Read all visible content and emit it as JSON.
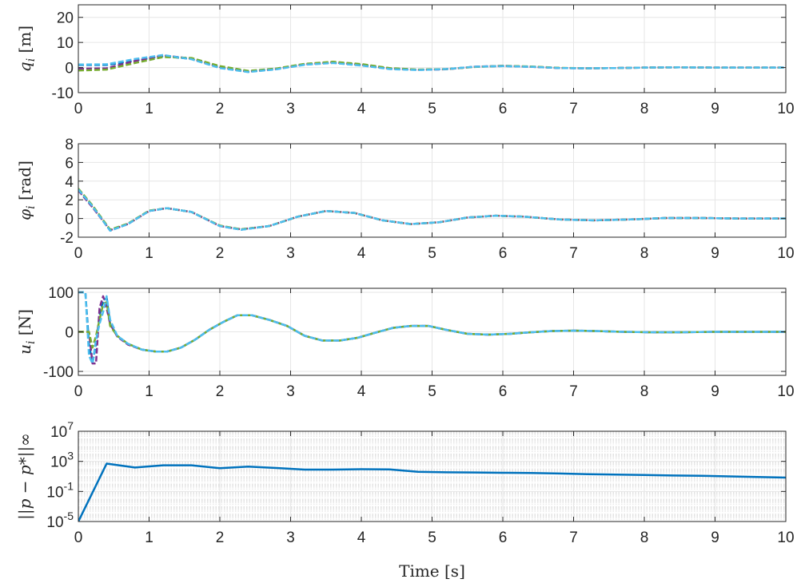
{
  "chart_data": [
    {
      "type": "line",
      "ylabel": "q_i [m]",
      "xlim": [
        0,
        10
      ],
      "ylim": [
        -10,
        25
      ],
      "yticks": [
        -10,
        0,
        10,
        20
      ],
      "xticks": [
        0,
        1,
        2,
        3,
        4,
        5,
        6,
        7,
        8,
        9,
        10
      ],
      "grid": true,
      "series": [
        {
          "color": "#0072BD",
          "style": "dashed",
          "x": [
            0,
            0.4,
            0.8,
            1.2,
            1.6,
            2.0,
            2.4,
            2.8,
            3.2,
            3.6,
            4.0,
            4.4,
            4.8,
            5.2,
            5.6,
            6.0,
            6.4,
            6.8,
            7.2,
            7.6,
            8.0,
            8.5,
            9,
            9.5,
            10
          ],
          "y": [
            1.0,
            1.0,
            2.8,
            4.6,
            3.4,
            0.0,
            -1.7,
            -0.5,
            1.2,
            1.9,
            1.0,
            -0.5,
            -0.9,
            -0.6,
            0.3,
            0.6,
            0.3,
            -0.2,
            -0.3,
            -0.2,
            0.0,
            0.1,
            0.0,
            0.0,
            0.0
          ]
        },
        {
          "color": "#7E2F8E",
          "style": "dashed",
          "x": [
            0,
            0.4,
            0.8,
            1.2,
            1.6,
            2.0,
            2.4,
            2.8,
            3.2,
            3.6,
            4.0,
            4.4,
            4.8,
            5.2,
            5.6,
            6.0,
            6.4,
            6.8,
            7.2,
            7.6,
            8.0,
            8.5,
            9,
            9.5,
            10
          ],
          "y": [
            -0.5,
            -0.3,
            2.6,
            4.8,
            3.6,
            0.2,
            -1.6,
            -0.6,
            1.3,
            2.1,
            1.1,
            -0.4,
            -0.9,
            -0.7,
            0.3,
            0.7,
            0.3,
            -0.2,
            -0.3,
            -0.2,
            0.0,
            0.1,
            0.0,
            0.0,
            0.0
          ]
        },
        {
          "color": "#77AC30",
          "style": "dashed",
          "x": [
            0,
            0.4,
            0.8,
            1.2,
            1.6,
            2.0,
            2.4,
            2.8,
            3.2,
            3.6,
            4.0,
            4.4,
            4.8,
            5.2,
            5.6,
            6.0,
            6.4,
            6.8,
            7.2,
            7.6,
            8.0,
            8.5,
            9,
            9.5,
            10
          ],
          "y": [
            -1.2,
            -0.8,
            1.8,
            4.2,
            3.8,
            0.6,
            -1.3,
            -0.4,
            1.5,
            2.3,
            1.4,
            -0.2,
            -0.8,
            -0.6,
            0.2,
            0.7,
            0.4,
            -0.1,
            -0.3,
            -0.2,
            0.0,
            0.1,
            0.0,
            0.0,
            0.0
          ]
        },
        {
          "color": "#4DBEEE",
          "style": "dashed",
          "x": [
            0,
            0.4,
            0.8,
            1.2,
            1.6,
            2.0,
            2.4,
            2.8,
            3.2,
            3.6,
            4.0,
            4.4,
            4.8,
            5.2,
            5.6,
            6.0,
            6.4,
            6.8,
            7.2,
            7.6,
            8.0,
            8.5,
            9,
            9.5,
            10
          ],
          "y": [
            1.2,
            1.3,
            3.4,
            5.0,
            3.3,
            -0.2,
            -1.8,
            -0.7,
            1.1,
            1.8,
            0.8,
            -0.6,
            -1.0,
            -0.6,
            0.3,
            0.6,
            0.3,
            -0.2,
            -0.3,
            -0.2,
            0.0,
            0.1,
            0.0,
            0.0,
            0.0
          ]
        }
      ]
    },
    {
      "type": "line",
      "ylabel": "φ_i [rad]",
      "xlim": [
        0,
        10
      ],
      "ylim": [
        -2,
        8
      ],
      "yticks": [
        -2,
        0,
        2,
        4,
        6,
        8
      ],
      "xticks": [
        0,
        1,
        2,
        3,
        4,
        5,
        6,
        7,
        8,
        9,
        10
      ],
      "grid": true,
      "series": [
        {
          "color": "#0072BD",
          "style": "dashed",
          "x": [
            0,
            0.2,
            0.45,
            0.7,
            1.0,
            1.25,
            1.6,
            2.0,
            2.3,
            2.7,
            3.1,
            3.5,
            3.9,
            4.3,
            4.7,
            5.1,
            5.5,
            5.9,
            6.3,
            6.8,
            7.3,
            7.8,
            8.3,
            8.8,
            9.3,
            10
          ],
          "y": [
            3.1,
            1.3,
            -1.3,
            -0.6,
            0.8,
            1.1,
            0.7,
            -0.8,
            -1.2,
            -0.8,
            0.2,
            0.8,
            0.6,
            -0.2,
            -0.6,
            -0.4,
            0.1,
            0.3,
            0.2,
            -0.1,
            -0.2,
            -0.1,
            0.05,
            0.05,
            0.0,
            0.0
          ]
        },
        {
          "color": "#7E2F8E",
          "style": "dashed",
          "x": [
            0,
            0.2,
            0.45,
            0.7,
            1.0,
            1.25,
            1.6,
            2.0,
            2.3,
            2.7,
            3.1,
            3.5,
            3.9,
            4.3,
            4.7,
            5.1,
            5.5,
            5.9,
            6.3,
            6.8,
            7.3,
            7.8,
            8.3,
            8.8,
            9.3,
            10
          ],
          "y": [
            3.0,
            1.2,
            -1.25,
            -0.6,
            0.8,
            1.1,
            0.7,
            -0.8,
            -1.15,
            -0.8,
            0.2,
            0.8,
            0.6,
            -0.2,
            -0.6,
            -0.4,
            0.1,
            0.3,
            0.2,
            -0.1,
            -0.2,
            -0.1,
            0.05,
            0.05,
            0.0,
            0.0
          ]
        },
        {
          "color": "#77AC30",
          "style": "dashed",
          "x": [
            0,
            0.2,
            0.45,
            0.7,
            1.0,
            1.25,
            1.6,
            2.0,
            2.3,
            2.7,
            3.1,
            3.5,
            3.9,
            4.3,
            4.7,
            5.1,
            5.5,
            5.9,
            6.3,
            6.8,
            7.3,
            7.8,
            8.3,
            8.8,
            9.3,
            10
          ],
          "y": [
            3.2,
            1.4,
            -1.2,
            -0.55,
            0.85,
            1.1,
            0.7,
            -0.75,
            -1.15,
            -0.8,
            0.2,
            0.8,
            0.6,
            -0.2,
            -0.6,
            -0.4,
            0.1,
            0.3,
            0.2,
            -0.1,
            -0.2,
            -0.1,
            0.05,
            0.05,
            0.0,
            0.0
          ]
        },
        {
          "color": "#4DBEEE",
          "style": "dashed",
          "x": [
            0,
            0.2,
            0.45,
            0.7,
            1.0,
            1.25,
            1.6,
            2.0,
            2.3,
            2.7,
            3.1,
            3.5,
            3.9,
            4.3,
            4.7,
            5.1,
            5.5,
            5.9,
            6.3,
            6.8,
            7.3,
            7.8,
            8.3,
            8.8,
            9.3,
            10
          ],
          "y": [
            3.1,
            1.3,
            -1.3,
            -0.6,
            0.8,
            1.1,
            0.7,
            -0.8,
            -1.2,
            -0.8,
            0.2,
            0.8,
            0.6,
            -0.2,
            -0.6,
            -0.4,
            0.1,
            0.3,
            0.2,
            -0.1,
            -0.2,
            -0.1,
            0.05,
            0.05,
            0.0,
            0.0
          ]
        }
      ]
    },
    {
      "type": "line",
      "ylabel": "u_i [N]",
      "xlim": [
        0,
        10
      ],
      "ylim": [
        -110,
        110
      ],
      "yticks": [
        -100,
        0,
        100
      ],
      "xticks": [
        0,
        1,
        2,
        3,
        4,
        5,
        6,
        7,
        8,
        9,
        10
      ],
      "grid": true,
      "series": [
        {
          "color": "#0072BD",
          "style": "dashed",
          "x": [
            0,
            0.1,
            0.15,
            0.2,
            0.25,
            0.3,
            0.35,
            0.4,
            0.45,
            0.55,
            0.7,
            0.9,
            1.1,
            1.25,
            1.45,
            1.65,
            1.85,
            2.05,
            2.25,
            2.45,
            2.7,
            2.95,
            3.2,
            3.45,
            3.7,
            3.95,
            4.2,
            4.45,
            4.7,
            4.95,
            5.2,
            5.5,
            5.8,
            6.1,
            6.4,
            6.7,
            7.0,
            7.3,
            7.7,
            8.1,
            8.5,
            9,
            9.5,
            10
          ],
          "y": [
            100,
            100,
            -30,
            -80,
            -30,
            40,
            80,
            85,
            20,
            -10,
            -30,
            -45,
            -50,
            -50,
            -40,
            -20,
            5,
            25,
            42,
            42,
            30,
            15,
            -10,
            -22,
            -22,
            -15,
            -2,
            10,
            15,
            15,
            5,
            -5,
            -7,
            -5,
            -1,
            2,
            3,
            2,
            0,
            -1,
            -1,
            0,
            0,
            0
          ]
        },
        {
          "color": "#7E2F8E",
          "style": "dashed",
          "x": [
            0,
            0.1,
            0.15,
            0.2,
            0.25,
            0.3,
            0.35,
            0.4,
            0.45,
            0.55,
            0.7,
            0.9,
            1.1,
            1.25,
            1.45,
            1.65,
            1.85,
            2.05,
            2.25,
            2.45,
            2.7,
            2.95,
            3.2,
            3.45,
            3.7,
            3.95,
            4.2,
            4.45,
            4.7,
            4.95,
            5.2,
            5.5,
            5.8,
            6.1,
            6.4,
            6.7,
            7.0,
            7.3,
            7.7,
            8.1,
            8.5,
            9,
            9.5,
            10
          ],
          "y": [
            0,
            0,
            0,
            -80,
            -80,
            60,
            90,
            60,
            20,
            -12,
            -32,
            -45,
            -50,
            -50,
            -40,
            -20,
            5,
            25,
            42,
            42,
            30,
            15,
            -10,
            -22,
            -22,
            -15,
            -2,
            10,
            15,
            15,
            5,
            -5,
            -7,
            -5,
            -1,
            2,
            3,
            2,
            0,
            -1,
            -1,
            0,
            0,
            0
          ]
        },
        {
          "color": "#77AC30",
          "style": "dashed",
          "x": [
            0,
            0.1,
            0.15,
            0.2,
            0.25,
            0.3,
            0.35,
            0.4,
            0.45,
            0.55,
            0.7,
            0.9,
            1.1,
            1.25,
            1.45,
            1.65,
            1.85,
            2.05,
            2.25,
            2.45,
            2.7,
            2.95,
            3.2,
            3.45,
            3.7,
            3.95,
            4.2,
            4.45,
            4.7,
            4.95,
            5.2,
            5.5,
            5.8,
            6.1,
            6.4,
            6.7,
            7.0,
            7.3,
            7.7,
            8.1,
            8.5,
            9,
            9.5,
            10
          ],
          "y": [
            0,
            0,
            0,
            -40,
            -10,
            30,
            70,
            75,
            15,
            -10,
            -30,
            -45,
            -50,
            -50,
            -40,
            -20,
            5,
            25,
            42,
            42,
            30,
            15,
            -10,
            -22,
            -22,
            -15,
            -2,
            10,
            15,
            15,
            5,
            -5,
            -7,
            -5,
            -1,
            2,
            3,
            2,
            0,
            -1,
            -1,
            0,
            0,
            0
          ]
        },
        {
          "color": "#4DBEEE",
          "style": "dashed",
          "x": [
            0,
            0.1,
            0.15,
            0.2,
            0.25,
            0.3,
            0.35,
            0.4,
            0.45,
            0.55,
            0.7,
            0.9,
            1.1,
            1.25,
            1.45,
            1.65,
            1.85,
            2.05,
            2.25,
            2.45,
            2.7,
            2.95,
            3.2,
            3.45,
            3.7,
            3.95,
            4.2,
            4.45,
            4.7,
            4.95,
            5.2,
            5.5,
            5.8,
            6.1,
            6.4,
            6.7,
            7.0,
            7.3,
            7.7,
            8.1,
            8.5,
            9,
            9.5,
            10
          ],
          "y": [
            100,
            100,
            -60,
            -80,
            -20,
            20,
            50,
            90,
            30,
            -10,
            -30,
            -45,
            -50,
            -50,
            -40,
            -20,
            5,
            25,
            42,
            42,
            30,
            15,
            -10,
            -22,
            -22,
            -15,
            -2,
            10,
            15,
            15,
            5,
            -5,
            -7,
            -5,
            -1,
            2,
            3,
            2,
            0,
            -1,
            -1,
            0,
            0,
            0
          ]
        }
      ]
    },
    {
      "type": "line",
      "ylabel": "||p − p*||∞",
      "xlabel": "Time [s]",
      "yscale": "log",
      "xlim": [
        0,
        10
      ],
      "ylim": [
        1e-05,
        10000000.0
      ],
      "yticks": [
        1e-05,
        0.1,
        1000,
        10000000.0
      ],
      "ytick_labels": [
        [
          "10",
          "-5"
        ],
        [
          "10",
          "-1"
        ],
        [
          "10",
          "3"
        ],
        [
          "10",
          "7"
        ]
      ],
      "xticks": [
        0,
        1,
        2,
        3,
        4,
        5,
        6,
        7,
        8,
        9,
        10
      ],
      "grid": true,
      "series": [
        {
          "color": "#0072BD",
          "style": "solid",
          "x": [
            0,
            0.4,
            0.8,
            1.2,
            1.6,
            2.0,
            2.4,
            2.8,
            3.2,
            3.6,
            4.0,
            4.4,
            4.8,
            5.2,
            5.6,
            6.0,
            6.4,
            6.8,
            7.2,
            7.6,
            8.0,
            8.4,
            8.8,
            9.2,
            9.6,
            10
          ],
          "y": [
            1e-05,
            500,
            150,
            300,
            300,
            120,
            200,
            130,
            80,
            80,
            90,
            85,
            40,
            35,
            33,
            30,
            28,
            24,
            20,
            17,
            15,
            13,
            12,
            10,
            8.5,
            7
          ]
        }
      ]
    }
  ]
}
